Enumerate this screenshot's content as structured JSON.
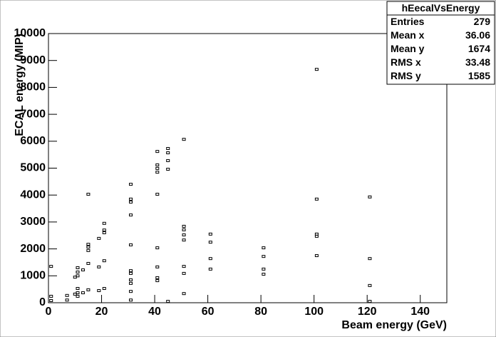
{
  "chart_data": {
    "type": "scatter",
    "marker": "box",
    "color": "#000000",
    "x_label": "Beam energy (GeV)",
    "y_label": "ECAL energy (MIP)",
    "xlim": [
      0,
      150
    ],
    "xticks": [
      0,
      20,
      40,
      60,
      80,
      100,
      120,
      140
    ],
    "ylim": [
      0,
      10000
    ],
    "yticks": [
      0,
      1000,
      2000,
      3000,
      4000,
      5000,
      6000,
      7000,
      8000,
      9000,
      10000
    ],
    "grid": false,
    "series": [
      {
        "name": "hEecalVsEnergy",
        "x": [
          1,
          1,
          1,
          7,
          7,
          10,
          10,
          11,
          11,
          11,
          11,
          11,
          11,
          13,
          13,
          15,
          15,
          15,
          15,
          15,
          15,
          19,
          19,
          19,
          21,
          21,
          21,
          21,
          21,
          31,
          31,
          31,
          31,
          31,
          31,
          31,
          31,
          31,
          31,
          31,
          41,
          41,
          41,
          41,
          41,
          41,
          41,
          41,
          41,
          45,
          45,
          45,
          45,
          45,
          51,
          51,
          51,
          51,
          51,
          51,
          51,
          51,
          61,
          61,
          61,
          61,
          81,
          81,
          81,
          81,
          101,
          101,
          101,
          101,
          101,
          121,
          121,
          121,
          121
        ],
        "y": [
          1350,
          240,
          80,
          270,
          100,
          320,
          950,
          1300,
          1140,
          1000,
          530,
          370,
          240,
          370,
          1220,
          1460,
          1940,
          2070,
          2170,
          4030,
          480,
          450,
          1330,
          2390,
          2600,
          2700,
          2950,
          1560,
          530,
          4400,
          3850,
          3740,
          3260,
          2150,
          1190,
          1090,
          850,
          720,
          420,
          100,
          5620,
          5120,
          4990,
          4850,
          4030,
          2040,
          1330,
          930,
          820,
          5730,
          5570,
          5280,
          4960,
          50,
          6070,
          2840,
          2710,
          2520,
          2330,
          1350,
          1090,
          340,
          2550,
          2250,
          1640,
          1250,
          2040,
          1720,
          1250,
          1060,
          8670,
          3850,
          2550,
          2470,
          1750,
          3930,
          1640,
          640,
          50
        ]
      }
    ],
    "stats": {
      "title": "hEecalVsEnergy",
      "entries": [
        {
          "label": "Entries",
          "value": 279
        },
        {
          "label": "Mean x",
          "value": 36.06
        },
        {
          "label": "Mean y",
          "value": 1674
        },
        {
          "label": "RMS x",
          "value": 33.48
        },
        {
          "label": "RMS y",
          "value": 1585
        }
      ]
    }
  }
}
